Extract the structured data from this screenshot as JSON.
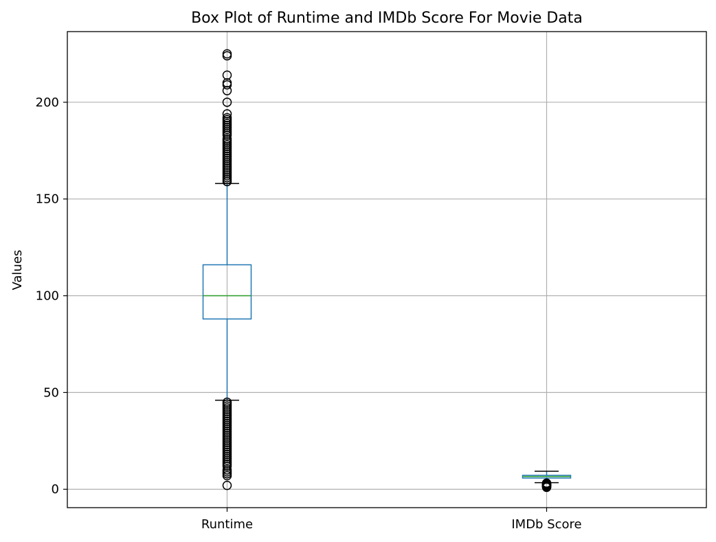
{
  "chart_data": {
    "type": "box",
    "title": "Box Plot of Runtime and IMDb Score For Movie Data",
    "xlabel": "",
    "ylabel": "Values",
    "categories": [
      "Runtime",
      "IMDb Score"
    ],
    "ylim": [
      -9.5,
      236.5
    ],
    "yticks": [
      0,
      50,
      100,
      150,
      200
    ],
    "grid": true,
    "colors": {
      "box": "#1f77b4",
      "median": "#2ca02c",
      "whisker": "#1f77b4",
      "cap": "#000000",
      "flier": "#000000",
      "grid": "#b0b0b0"
    },
    "boxes": [
      {
        "name": "Runtime",
        "whisker_low": 46,
        "q1": 88,
        "median": 100,
        "q3": 116,
        "whisker_high": 158,
        "outliers": [
          2,
          7,
          8,
          9,
          10,
          12,
          13,
          14,
          15,
          16,
          17,
          18,
          19,
          20,
          21,
          22,
          23,
          24,
          25,
          26,
          27,
          28,
          29,
          30,
          31,
          32,
          33,
          34,
          35,
          36,
          37,
          38,
          39,
          40,
          41,
          42,
          43,
          44,
          45,
          159,
          160,
          161,
          162,
          163,
          164,
          165,
          166,
          167,
          168,
          169,
          170,
          171,
          172,
          173,
          174,
          175,
          176,
          177,
          178,
          179,
          180,
          181,
          183,
          184,
          185,
          186,
          187,
          188,
          189,
          190,
          191,
          192,
          194,
          200,
          206,
          209,
          210,
          214,
          224,
          225
        ]
      },
      {
        "name": "IMDb Score",
        "whisker_low": 3.4,
        "q1": 5.8,
        "median": 6.6,
        "q3": 7.2,
        "whisker_high": 9.3,
        "outliers": [
          1.0,
          1.2,
          1.4,
          1.6,
          1.8,
          2.0,
          2.2,
          2.4,
          2.6,
          2.8,
          3.0,
          3.2
        ]
      }
    ]
  }
}
